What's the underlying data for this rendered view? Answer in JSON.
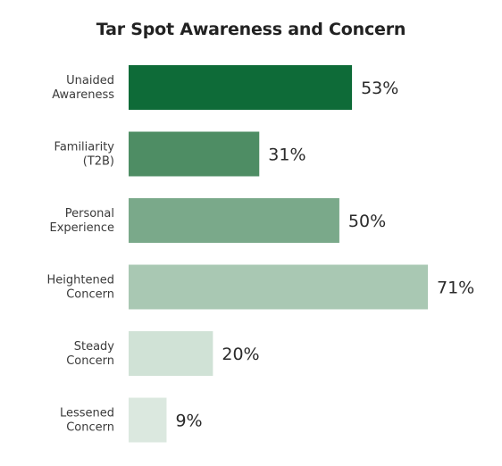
{
  "chart_data": {
    "type": "bar",
    "orientation": "horizontal",
    "title": "Tar Spot Awareness and Concern",
    "xlabel": "",
    "ylabel": "",
    "categories": [
      [
        "Unaided",
        "Awareness"
      ],
      [
        "Familiarity",
        "(T2B)"
      ],
      [
        "Personal",
        "Experience"
      ],
      [
        "Heightened",
        "Concern"
      ],
      [
        "Steady",
        "Concern"
      ],
      [
        "Lessened",
        "Concern"
      ]
    ],
    "values": [
      53,
      31,
      50,
      71,
      20,
      9
    ],
    "value_labels": [
      "53%",
      "31%",
      "50%",
      "71%",
      "20%",
      "9%"
    ],
    "unit": "%",
    "xlim": [
      0,
      71
    ],
    "grid": false,
    "legend": "none",
    "colors": [
      "#0e6b38",
      "#4e8d64",
      "#7aa98a",
      "#a9c8b3",
      "#d0e2d6",
      "#dbe8df"
    ]
  }
}
